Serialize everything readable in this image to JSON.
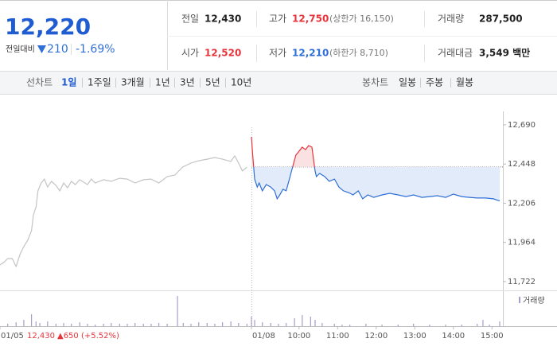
{
  "header": {
    "price": "12,220",
    "change_label": "전일대비",
    "change": "210",
    "change_rate": "-1.69%",
    "stats": [
      {
        "label": "전일",
        "value": "12,430",
        "color": "#222222"
      },
      {
        "label": "고가",
        "value": "12,750",
        "note": "(상한가 16,150)",
        "color": "#e8333a"
      },
      {
        "label": "거래량",
        "value": "287,500",
        "color": "#222222"
      },
      {
        "label": "시가",
        "value": "12,520",
        "color": "#e8333a"
      },
      {
        "label": "저가",
        "value": "12,210",
        "note": "(하한가 8,710)",
        "color": "#2f6fd6"
      },
      {
        "label": "거래대금",
        "value": "3,549 백만",
        "color": "#222222"
      }
    ]
  },
  "toolbar": {
    "line_label": "선차트",
    "periods": [
      "1일",
      "1주일",
      "3개월",
      "1년",
      "3년",
      "5년",
      "10년"
    ],
    "selected_period": 0,
    "candle_label": "봉차트",
    "candles": [
      "일봉",
      "주봉",
      "월봉"
    ]
  },
  "chart_data": {
    "type": "line",
    "grid": false,
    "ylim": [
      11692,
      12724
    ],
    "yticks": [
      {
        "value": 12690,
        "label": "12,690"
      },
      {
        "value": 12448,
        "label": "12,448"
      },
      {
        "value": 12206,
        "label": "12,206"
      },
      {
        "value": 11964,
        "label": "11,964"
      },
      {
        "value": 11722,
        "label": "11,722"
      }
    ],
    "xlim": [
      0,
      782
    ],
    "xticks": [
      {
        "value": 0,
        "label": "01/05"
      },
      {
        "value": 391,
        "label": "01/08"
      },
      {
        "value": 465,
        "label": "10:00"
      },
      {
        "value": 525,
        "label": "11:00"
      },
      {
        "value": 585,
        "label": "12:00"
      },
      {
        "value": 645,
        "label": "13:00"
      },
      {
        "value": 705,
        "label": "14:00"
      },
      {
        "value": 765,
        "label": "15:00"
      }
    ],
    "baseline": {
      "value": 12430,
      "label": "12,430"
    },
    "baseline_change": "▲650 (+5.52%)",
    "prev_day": {
      "color": "#c4c4c4",
      "x": [
        0,
        6,
        12,
        19,
        25,
        31,
        37,
        43,
        49,
        52,
        56,
        59,
        64,
        69,
        74,
        80,
        87,
        93,
        99,
        105,
        111,
        117,
        124,
        136,
        142,
        148,
        161,
        173,
        186,
        198,
        210,
        223,
        235,
        247,
        260,
        272,
        284,
        297,
        309,
        322,
        334,
        346,
        359,
        365,
        371,
        377,
        384
      ],
      "values": [
        11825,
        11840,
        11864,
        11864,
        11815,
        11889,
        11938,
        11977,
        12036,
        12134,
        12183,
        12282,
        12331,
        12355,
        12306,
        12341,
        12316,
        12282,
        12331,
        12301,
        12341,
        12321,
        12351,
        12321,
        12355,
        12331,
        12351,
        12341,
        12360,
        12355,
        12331,
        12351,
        12355,
        12331,
        12370,
        12380,
        12429,
        12454,
        12468,
        12478,
        12488,
        12478,
        12464,
        12498,
        12454,
        12405,
        12429
      ]
    },
    "today": {
      "up_color": "#e8333a",
      "down_color": "#2f6fd6",
      "up_fill": "#fbe2e2",
      "down_fill": "#e2ebfa",
      "x": [
        391,
        393,
        396,
        400,
        403,
        408,
        414,
        421,
        427,
        431,
        435,
        440,
        445,
        450,
        455,
        460,
        465,
        470,
        475,
        480,
        485,
        490,
        492,
        497,
        505,
        512,
        520,
        527,
        534,
        542,
        549,
        557,
        564,
        572,
        581,
        594,
        606,
        619,
        631,
        643,
        656,
        668,
        680,
        693,
        705,
        718,
        730,
        742,
        755,
        767,
        777
      ],
      "values": [
        12616,
        12503,
        12355,
        12306,
        12331,
        12282,
        12321,
        12306,
        12282,
        12233,
        12257,
        12292,
        12282,
        12355,
        12429,
        12503,
        12527,
        12552,
        12537,
        12562,
        12552,
        12405,
        12370,
        12390,
        12370,
        12341,
        12355,
        12306,
        12282,
        12272,
        12257,
        12282,
        12233,
        12257,
        12242,
        12257,
        12267,
        12257,
        12247,
        12257,
        12242,
        12247,
        12252,
        12242,
        12262,
        12247,
        12242,
        12238,
        12238,
        12233,
        12220
      ]
    },
    "volume": {
      "name": "거래량",
      "color": "#a99cca",
      "ylim": [
        0,
        20000
      ],
      "x": [
        12,
        25,
        37,
        49,
        56,
        62,
        74,
        87,
        99,
        111,
        124,
        136,
        148,
        161,
        173,
        186,
        198,
        210,
        223,
        235,
        247,
        260,
        276,
        285,
        297,
        309,
        322,
        334,
        346,
        359,
        371,
        384,
        391,
        396,
        408,
        421,
        433,
        445,
        458,
        470,
        483,
        490,
        501,
        520,
        532,
        544,
        569,
        594,
        619,
        643,
        668,
        693,
        718,
        742,
        751,
        761,
        777
      ],
      "values": [
        1500,
        2500,
        4000,
        7500,
        3000,
        2000,
        3000,
        1500,
        2000,
        1500,
        2500,
        1500,
        1000,
        1500,
        2000,
        1500,
        1500,
        2000,
        1500,
        1500,
        2000,
        1500,
        19000,
        2000,
        1500,
        2500,
        2000,
        1500,
        2500,
        3000,
        2000,
        1500,
        6000,
        4000,
        2500,
        2000,
        1500,
        2000,
        5000,
        7000,
        6000,
        4000,
        2000,
        1500,
        1000,
        1000,
        1500,
        1000,
        1000,
        1500,
        1000,
        1000,
        1000,
        1500,
        4000,
        1000,
        3000
      ]
    }
  }
}
